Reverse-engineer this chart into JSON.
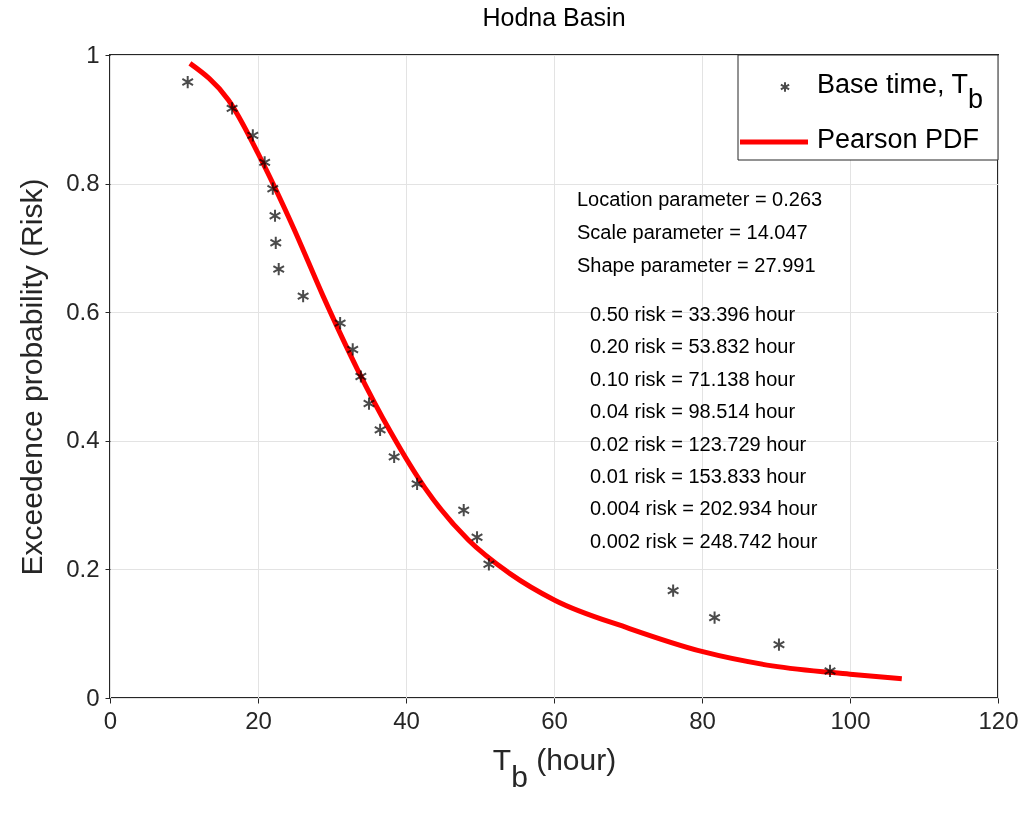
{
  "chart_data": {
    "type": "scatter",
    "title": "Hodna Basin",
    "xlabel": "T$_{b}$ (hour)",
    "ylabel": "Exceedence probability (Risk)",
    "xlim": [
      0,
      120
    ],
    "xticks": [
      0,
      20,
      40,
      60,
      80,
      100,
      120
    ],
    "ylim": [
      0,
      1
    ],
    "yticks": [
      0,
      0.2,
      0.4,
      0.6,
      0.8,
      1
    ],
    "grid": true,
    "legend": "top right",
    "series": [
      {
        "name": "Base time, T$_{b}$",
        "marker": "cross",
        "color": "#000000",
        "x": [
          10.5,
          16.5,
          19.3,
          20.9,
          22.0,
          22.3,
          22.4,
          22.8,
          26.1,
          31.1,
          32.8,
          33.9,
          35.0,
          36.5,
          38.4,
          41.5,
          47.8,
          49.6,
          51.2,
          76.1,
          81.7,
          90.4,
          97.3
        ],
        "values": [
          0.958,
          0.917,
          0.875,
          0.833,
          0.792,
          0.75,
          0.708,
          0.667,
          0.625,
          0.583,
          0.542,
          0.5,
          0.458,
          0.417,
          0.375,
          0.333,
          0.292,
          0.25,
          0.208,
          0.167,
          0.125,
          0.083,
          0.042
        ]
      },
      {
        "name": "Pearson PDF",
        "type": "line",
        "marker": "none",
        "line_style": "solid",
        "color": "#ff0000",
        "x": [
          10.8,
          16.0,
          20.7,
          24.8,
          28.8,
          33.4,
          38.0,
          42.6,
          48.4,
          54.1,
          60.1,
          70.2,
          80.1,
          89.5,
          100.0,
          107.0
        ],
        "values": [
          0.987,
          0.93,
          0.831,
          0.731,
          0.625,
          0.512,
          0.412,
          0.326,
          0.246,
          0.193,
          0.152,
          0.108,
          0.072,
          0.05,
          0.037,
          0.03
        ]
      }
    ],
    "annotations": [
      "Location parameter = 0.263",
      "Scale parameter = 14.047",
      "Shape parameter = 27.991",
      "0.50 risk = 33.396 hour",
      "0.20 risk = 53.832 hour",
      "0.10 risk = 71.138 hour",
      "0.04 risk = 98.514 hour",
      "0.02 risk = 123.729 hour",
      "0.01 risk = 153.833 hour",
      "0.004 risk = 202.934 hour",
      "0.002 risk = 248.742 hour"
    ]
  }
}
